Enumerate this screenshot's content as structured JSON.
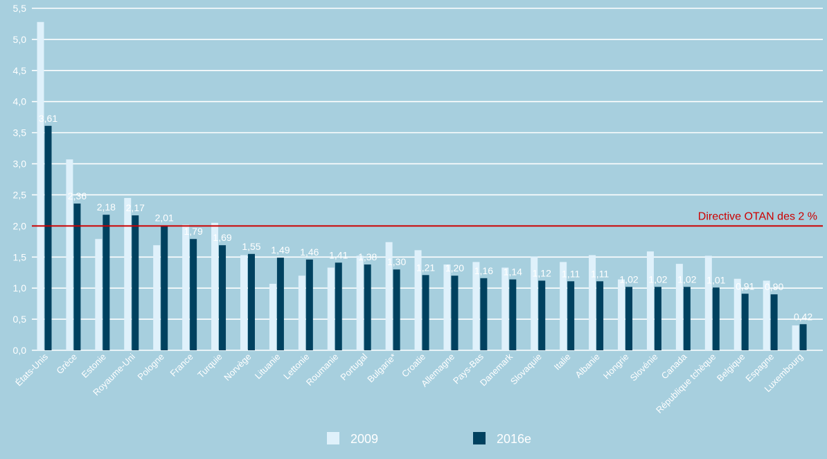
{
  "chart_data": {
    "type": "bar",
    "title": "",
    "xlabel": "",
    "ylabel": "",
    "ylim": [
      0,
      5.5
    ],
    "yticks": [
      "0,0",
      "0,5",
      "1,0",
      "1,5",
      "2,0",
      "2,5",
      "3,0",
      "3,5",
      "4,0",
      "4,5",
      "5,0",
      "5,5"
    ],
    "ytick_values": [
      0,
      0.5,
      1.0,
      1.5,
      2.0,
      2.5,
      3.0,
      3.5,
      4.0,
      4.5,
      5.0,
      5.5
    ],
    "grid": true,
    "categories": [
      "États-Unis",
      "Grèce",
      "Estonie",
      "Royaume-Uni",
      "Pologne",
      "France",
      "Turquie",
      "Norvège",
      "Lituanie",
      "Lettonie",
      "Roumanie",
      "Portugal",
      "Bulgarie*",
      "Croatie",
      "Allemagne",
      "Pays-Bas",
      "Danemark",
      "Slovaquie",
      "Italie",
      "Albanie",
      "Hongrie",
      "Slovénie",
      "Canada",
      "République tchèque",
      "Belgique",
      "Espagne",
      "Luxembourg"
    ],
    "series": [
      {
        "name": "2009",
        "color": "#dff1fb",
        "values": [
          5.28,
          3.07,
          1.79,
          2.45,
          1.69,
          2.02,
          2.05,
          1.53,
          1.07,
          1.2,
          1.33,
          1.52,
          1.74,
          1.61,
          1.38,
          1.42,
          1.33,
          1.51,
          1.42,
          1.53,
          1.14,
          1.59,
          1.39,
          1.52,
          1.15,
          1.12,
          0.4
        ]
      },
      {
        "name": "2016e",
        "color": "#00415f",
        "values": [
          3.61,
          2.36,
          2.18,
          2.17,
          2.01,
          1.79,
          1.69,
          1.55,
          1.49,
          1.46,
          1.41,
          1.38,
          1.3,
          1.21,
          1.2,
          1.16,
          1.14,
          1.12,
          1.11,
          1.11,
          1.02,
          1.02,
          1.02,
          1.01,
          0.91,
          0.9,
          0.42
        ],
        "labels": [
          "3,61",
          "2,36",
          "2,18",
          "2,17",
          "2,01",
          "1,79",
          "1,69",
          "1,55",
          "1,49",
          "1,46",
          "1,41",
          "1,38",
          "1,30",
          "1,21",
          "1,20",
          "1,16",
          "1,14",
          "1,12",
          "1,11",
          "1,11",
          "1,02",
          "1,02",
          "1,02",
          "1,01",
          "0,91",
          "0,90",
          "0,42"
        ]
      }
    ],
    "reference_line": {
      "value": 2.0,
      "label": "Directive OTAN des 2 %",
      "color": "#cc0000"
    },
    "legend": {
      "position": "bottom-center",
      "entries": [
        "2009",
        "2016e"
      ]
    }
  }
}
